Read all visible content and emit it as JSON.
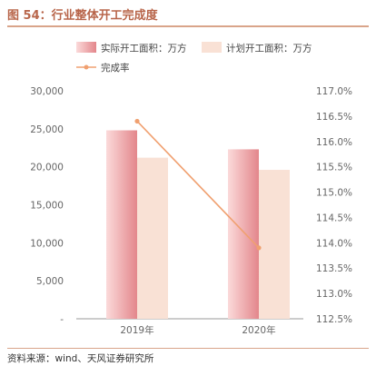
{
  "header": {
    "title": "图 54：行业整体开工完成度"
  },
  "footer": {
    "source": "资料来源：wind、天风证券研究所"
  },
  "colors": {
    "actual": "#e58f93",
    "planned": "#f9e1d5",
    "rate": "#f0a070",
    "axis": "#999999",
    "text": "#666666"
  },
  "chart_data": {
    "type": "bar",
    "categories": [
      "2019年",
      "2020年"
    ],
    "series": [
      {
        "name": "实际开工面积：万方",
        "kind": "bar",
        "axis": "left",
        "values": [
          24800,
          22300
        ]
      },
      {
        "name": "计划开工面积：万方",
        "kind": "bar",
        "axis": "left",
        "values": [
          21200,
          19600
        ]
      },
      {
        "name": "完成率",
        "kind": "line",
        "axis": "right",
        "values": [
          116.4,
          113.9
        ]
      }
    ],
    "ylim_left": [
      0,
      30000
    ],
    "yticks_left": [
      "-",
      "5,000",
      "10,000",
      "15,000",
      "20,000",
      "25,000",
      "30,000"
    ],
    "ylim_right": [
      112.5,
      117.0
    ],
    "yticks_right": [
      "112.5%",
      "113.0%",
      "113.5%",
      "114.0%",
      "114.5%",
      "115.0%",
      "115.5%",
      "116.0%",
      "116.5%",
      "117.0%"
    ],
    "grid": false,
    "legend_position": "top"
  }
}
